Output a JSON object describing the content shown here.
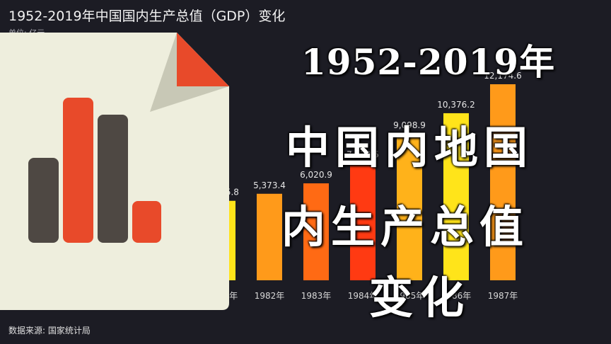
{
  "header": {
    "title": "1952-2019年中国国内生产总值（GDP）变化",
    "unit": "单位: 亿元"
  },
  "footer": {
    "source": "数据来源: 国家统计局"
  },
  "overlay": {
    "line1": "1952-2019年",
    "line2": "中国内地国",
    "line3": "内生产总值",
    "line4": "变化"
  },
  "icon": {
    "name": "document-bar-chart-icon"
  },
  "colors": {
    "background": "#1c1c24",
    "bar_palette": [
      "#ffe41a",
      "#ff9a1a",
      "#ff5a14",
      "#ff3a12"
    ],
    "icon_paper": "#eeeedd",
    "icon_corner": "#e84a2a"
  },
  "chart_data": {
    "type": "bar",
    "title": "1952-2019年中国国内生产总值（GDP）变化",
    "ylabel": "单位: 亿元",
    "categories": [
      "1981年",
      "1982年",
      "1983年",
      "1984年",
      "1985年",
      "1986年",
      "1987年"
    ],
    "value_labels": [
      "4,935.8",
      "5,373.4",
      "6,020.9",
      "7,278.5",
      "9,098.9",
      "10,376.2",
      "12,174.6"
    ],
    "values": [
      4935.8,
      5373.4,
      6020.9,
      7278.5,
      9098.9,
      10376.2,
      12174.6
    ],
    "bar_colors": [
      "#ffe41a",
      "#ff9a1a",
      "#ff6a14",
      "#ff3a12",
      "#ffb21a",
      "#ffe41a",
      "#ff9a1a"
    ],
    "grid": false
  }
}
